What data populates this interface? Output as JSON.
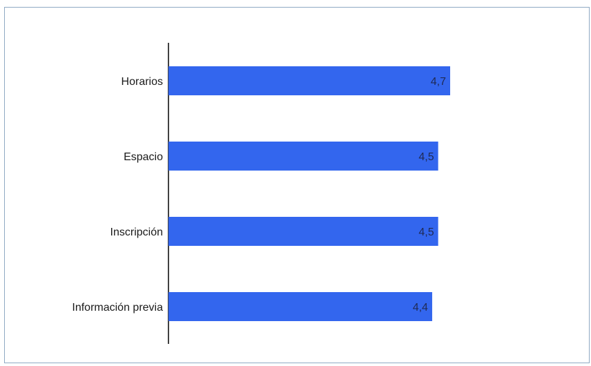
{
  "chart_data": {
    "type": "bar",
    "orientation": "horizontal",
    "categories": [
      "Horarios",
      "Espacio",
      "Inscripción",
      "Información previa"
    ],
    "values": [
      4.7,
      4.5,
      4.5,
      4.4
    ],
    "value_labels": [
      "4,7",
      "4,5",
      "4,5",
      "4,4"
    ],
    "title": "",
    "xlabel": "",
    "ylabel": "",
    "grid": false,
    "legend": "none",
    "bar_color": "#3366ee"
  }
}
